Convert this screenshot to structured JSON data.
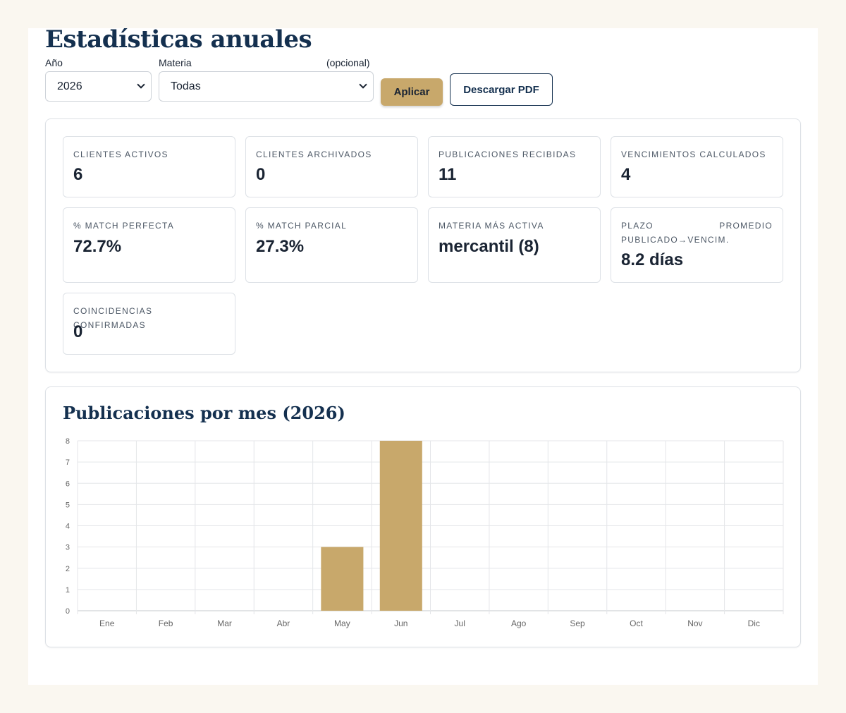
{
  "page": {
    "title": "Estadísticas anuales"
  },
  "filters": {
    "year_label": "Año",
    "year_value": "2026",
    "subject_label": "Materia",
    "subject_optional": "(opcional)",
    "subject_value": "Todas",
    "apply_label": "Aplicar",
    "pdf_label": "Descargar PDF"
  },
  "stats": [
    {
      "label": "CLIENTES ACTIVOS",
      "value": "6"
    },
    {
      "label": "CLIENTES ARCHIVADOS",
      "value": "0"
    },
    {
      "label": "PUBLICACIONES RECIBIDAS",
      "value": "11"
    },
    {
      "label": "VENCIMIENTOS CALCULADOS",
      "value": "4"
    },
    {
      "label": "% MATCH PERFECTA",
      "value": "72.7%"
    },
    {
      "label": "% MATCH PARCIAL",
      "value": "27.3%"
    },
    {
      "label": "MATERIA MÁS ACTIVA",
      "value": "mercantil (8)"
    },
    {
      "label": "PLAZO PROMEDIO PUBLICADO→VENCIM.",
      "value": "8.2 días"
    },
    {
      "label": "COINCIDENCIAS CONFIRMADAS",
      "value": "0"
    }
  ],
  "chart": {
    "title": "Publicaciones por mes (2026)"
  },
  "chart_data": {
    "type": "bar",
    "title": "Publicaciones por mes (2026)",
    "categories": [
      "Ene",
      "Feb",
      "Mar",
      "Abr",
      "May",
      "Jun",
      "Jul",
      "Ago",
      "Sep",
      "Oct",
      "Nov",
      "Dic"
    ],
    "values": [
      0,
      0,
      0,
      0,
      3,
      8,
      0,
      0,
      0,
      0,
      0,
      0
    ],
    "xlabel": "",
    "ylabel": "",
    "ylim": [
      0,
      8
    ],
    "yticks": [
      0,
      1,
      2,
      3,
      4,
      5,
      6,
      7,
      8
    ],
    "grid": true,
    "legend": "none",
    "bar_color": "#c8a86b"
  }
}
